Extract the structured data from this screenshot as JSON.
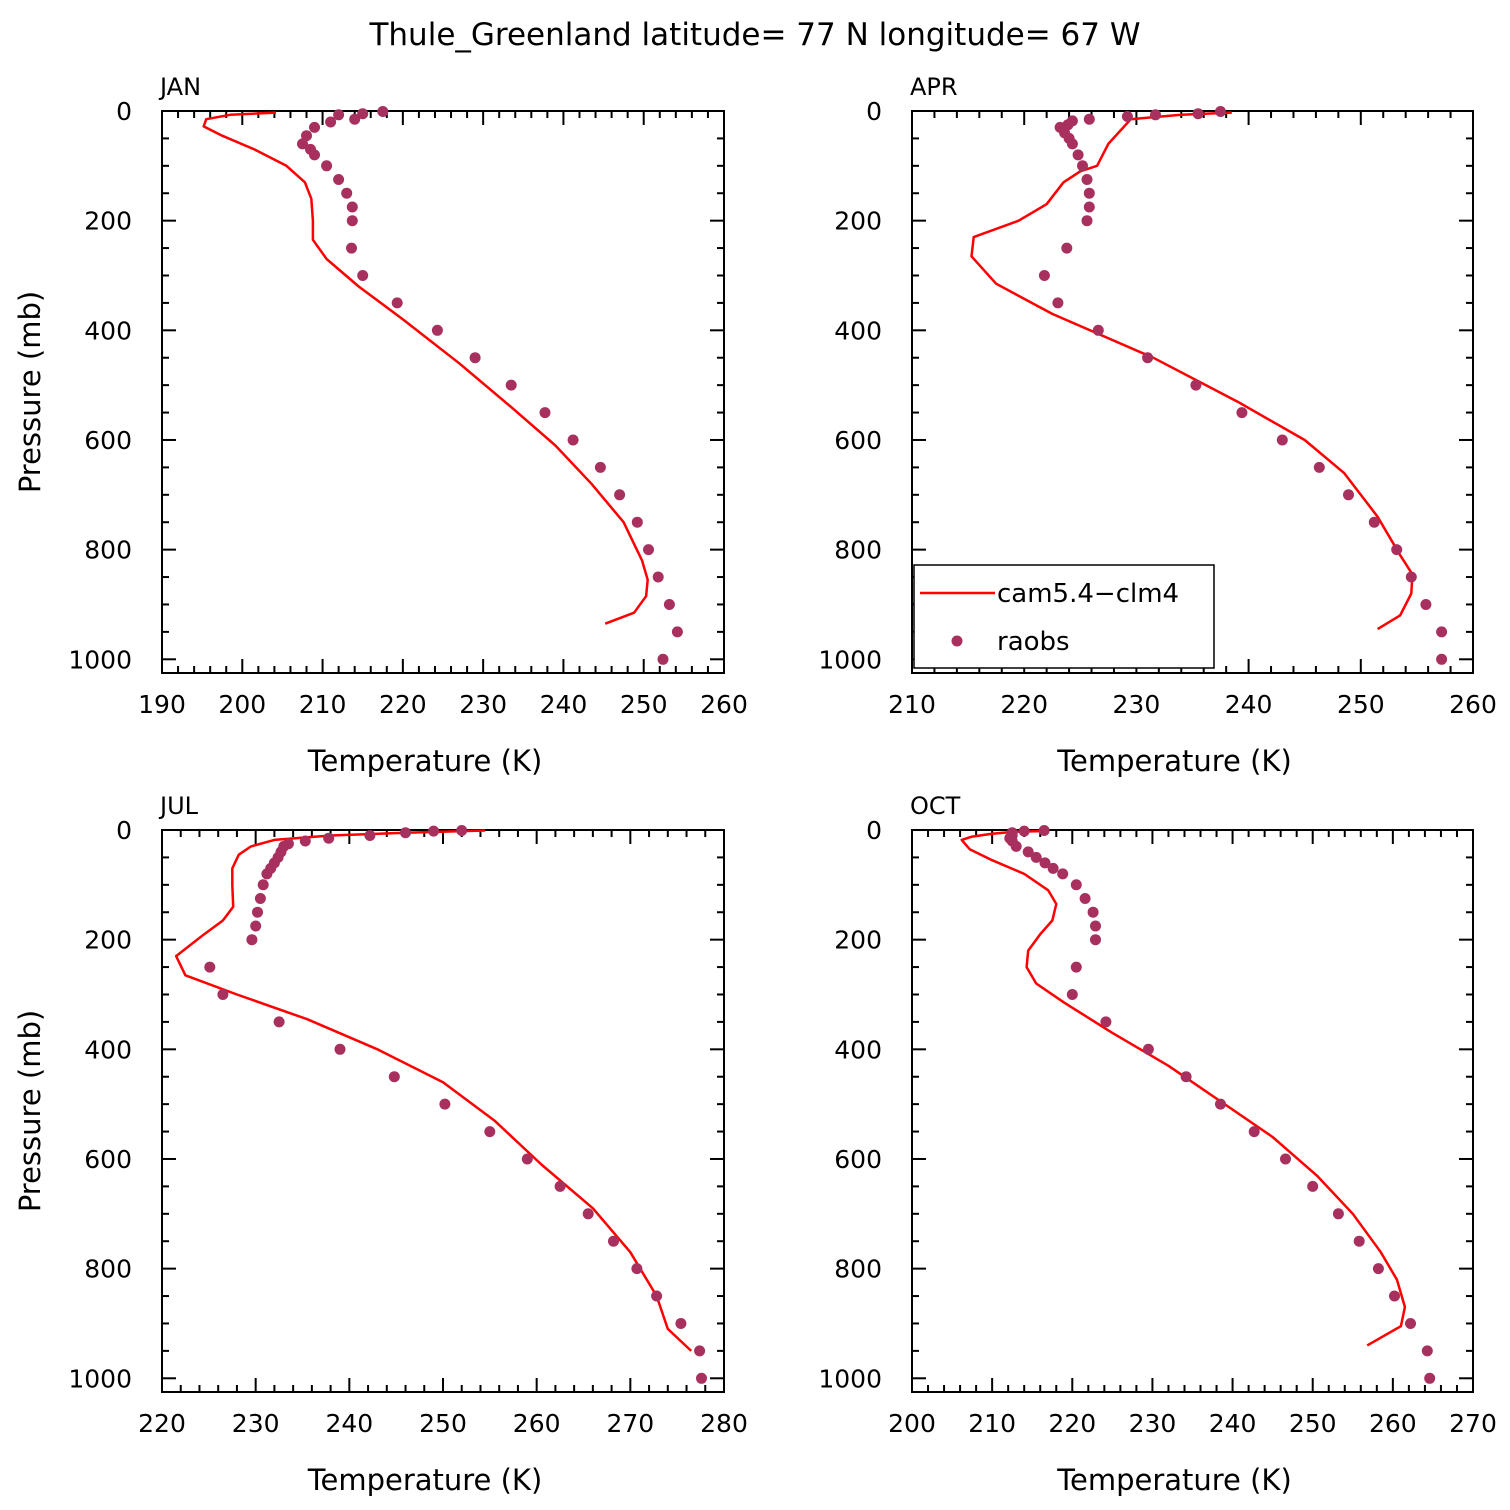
{
  "title": "Thule_Greenland  latitude= 77 N longitude= 67 W",
  "colors": {
    "model": "#ff0000",
    "obs": "#a8305f"
  },
  "legend": {
    "entries": [
      "cam5.4−clm4",
      "raobs"
    ],
    "location": "inside APR panel, lower-left"
  },
  "chart_data": [
    {
      "type": "line",
      "panel": "JAN",
      "xlabel": "Temperature (K)",
      "ylabel": "Pressure (mb)",
      "xlim": [
        190,
        260
      ],
      "ylim": [
        1025,
        0
      ],
      "xticks": [
        190,
        200,
        210,
        220,
        230,
        240,
        250,
        260
      ],
      "yticks": [
        0,
        200,
        400,
        600,
        800,
        1000
      ],
      "series": [
        {
          "name": "cam5.4−clm4",
          "style": "line",
          "points": [
            [
              204.2,
              3
            ],
            [
              198.5,
              7
            ],
            [
              195.5,
              15
            ],
            [
              195.2,
              28
            ],
            [
              197.5,
              45
            ],
            [
              201.5,
              70
            ],
            [
              205.5,
              100
            ],
            [
              207.8,
              130
            ],
            [
              208.6,
              160
            ],
            [
              208.8,
              200
            ],
            [
              208.8,
              235
            ],
            [
              210.5,
              270
            ],
            [
              214.5,
              320
            ],
            [
              220.0,
              380
            ],
            [
              227.0,
              460
            ],
            [
              233.5,
              540
            ],
            [
              239.0,
              610
            ],
            [
              243.5,
              680
            ],
            [
              247.5,
              750
            ],
            [
              249.8,
              820
            ],
            [
              250.5,
              855
            ],
            [
              250.3,
              885
            ],
            [
              248.8,
              915
            ],
            [
              245.2,
              935
            ]
          ]
        },
        {
          "name": "raobs",
          "style": "points",
          "points": [
            [
              217.5,
              1
            ],
            [
              215,
              5
            ],
            [
              212,
              7
            ],
            [
              214,
              15
            ],
            [
              211,
              20
            ],
            [
              209,
              30
            ],
            [
              208,
              45
            ],
            [
              207.5,
              60
            ],
            [
              208.5,
              70
            ],
            [
              209,
              80
            ],
            [
              210.5,
              100
            ],
            [
              212,
              125
            ],
            [
              213,
              150
            ],
            [
              213.7,
              175
            ],
            [
              213.7,
              200
            ],
            [
              213.6,
              250
            ],
            [
              215,
              300
            ],
            [
              219.3,
              350
            ],
            [
              224.3,
              400
            ],
            [
              229,
              450
            ],
            [
              233.5,
              500
            ],
            [
              237.7,
              550
            ],
            [
              241.2,
              600
            ],
            [
              244.6,
              650
            ],
            [
              247,
              700
            ],
            [
              249.2,
              750
            ],
            [
              250.6,
              800
            ],
            [
              251.8,
              850
            ],
            [
              253.2,
              900
            ],
            [
              254.2,
              950
            ],
            [
              252.4,
              1000
            ]
          ]
        }
      ]
    },
    {
      "type": "line",
      "panel": "APR",
      "xlabel": "Temperature (K)",
      "ylabel": "",
      "xlim": [
        210,
        260
      ],
      "ylim": [
        1025,
        0
      ],
      "xticks": [
        210,
        220,
        230,
        240,
        250,
        260
      ],
      "yticks": [
        0,
        200,
        400,
        600,
        800,
        1000
      ],
      "series": [
        {
          "name": "cam5.4−clm4",
          "style": "line",
          "points": [
            [
              238.5,
              3
            ],
            [
              234,
              7
            ],
            [
              229.5,
              15
            ],
            [
              227.5,
              60
            ],
            [
              226.5,
              100
            ],
            [
              225.0,
              110
            ],
            [
              223.5,
              130
            ],
            [
              222,
              170
            ],
            [
              219.5,
              200
            ],
            [
              215.5,
              230
            ],
            [
              215.3,
              265
            ],
            [
              217.5,
              315
            ],
            [
              222.5,
              370
            ],
            [
              231.5,
              450
            ],
            [
              239,
              530
            ],
            [
              245,
              600
            ],
            [
              248.5,
              660
            ],
            [
              251.5,
              740
            ],
            [
              253.5,
              810
            ],
            [
              254.6,
              845
            ],
            [
              254.5,
              880
            ],
            [
              253.5,
              920
            ],
            [
              251.5,
              945
            ]
          ]
        },
        {
          "name": "raobs",
          "style": "points",
          "points": [
            [
              237.5,
              1
            ],
            [
              235.5,
              5
            ],
            [
              231.7,
              7
            ],
            [
              229.2,
              10
            ],
            [
              225.8,
              15
            ],
            [
              224.3,
              18
            ],
            [
              223.9,
              25
            ],
            [
              223.2,
              30
            ],
            [
              223.6,
              40
            ],
            [
              224,
              50
            ],
            [
              224.3,
              60
            ],
            [
              224.8,
              80
            ],
            [
              225.2,
              100
            ],
            [
              225.6,
              125
            ],
            [
              225.8,
              150
            ],
            [
              225.8,
              175
            ],
            [
              225.6,
              200
            ],
            [
              223.8,
              250
            ],
            [
              221.8,
              300
            ],
            [
              223,
              350
            ],
            [
              226.6,
              400
            ],
            [
              231,
              450
            ],
            [
              235.3,
              500
            ],
            [
              239.4,
              550
            ],
            [
              243,
              600
            ],
            [
              246.3,
              650
            ],
            [
              248.9,
              700
            ],
            [
              251.2,
              750
            ],
            [
              253.2,
              800
            ],
            [
              254.5,
              850
            ],
            [
              255.8,
              900
            ],
            [
              257.2,
              950
            ],
            [
              257.2,
              1000
            ]
          ]
        }
      ]
    },
    {
      "type": "line",
      "panel": "JUL",
      "xlabel": "Temperature (K)",
      "ylabel": "Pressure (mb)",
      "xlim": [
        220,
        280
      ],
      "ylim": [
        1025,
        0
      ],
      "xticks": [
        220,
        230,
        240,
        250,
        260,
        270,
        280
      ],
      "yticks": [
        0,
        200,
        400,
        600,
        800,
        1000
      ],
      "series": [
        {
          "name": "cam5.4−clm4",
          "style": "line",
          "points": [
            [
              254.5,
              1
            ],
            [
              246,
              5
            ],
            [
              238,
              10
            ],
            [
              232,
              18
            ],
            [
              229.5,
              30
            ],
            [
              228.2,
              45
            ],
            [
              227.5,
              70
            ],
            [
              227.5,
              100
            ],
            [
              227.6,
              140
            ],
            [
              226.5,
              165
            ],
            [
              224.5,
              190
            ],
            [
              221.5,
              230
            ],
            [
              222.5,
              265
            ],
            [
              228,
              300
            ],
            [
              235.5,
              345
            ],
            [
              243,
              400
            ],
            [
              250,
              460
            ],
            [
              255.5,
              530
            ],
            [
              260.5,
              610
            ],
            [
              266,
              690
            ],
            [
              270,
              770
            ],
            [
              272.8,
              850
            ],
            [
              274,
              910
            ],
            [
              276.5,
              950
            ]
          ]
        },
        {
          "name": "raobs",
          "style": "points",
          "points": [
            [
              252,
              1
            ],
            [
              249,
              2
            ],
            [
              246,
              5
            ],
            [
              242.2,
              10
            ],
            [
              237.8,
              15
            ],
            [
              235.3,
              20
            ],
            [
              233.5,
              25
            ],
            [
              233,
              30
            ],
            [
              232.7,
              40
            ],
            [
              232.4,
              50
            ],
            [
              232,
              60
            ],
            [
              231.6,
              70
            ],
            [
              231.2,
              80
            ],
            [
              230.8,
              100
            ],
            [
              230.5,
              125
            ],
            [
              230.2,
              150
            ],
            [
              230,
              175
            ],
            [
              229.6,
              200
            ],
            [
              225.1,
              250
            ],
            [
              226.5,
              300
            ],
            [
              232.5,
              350
            ],
            [
              239,
              400
            ],
            [
              244.8,
              450
            ],
            [
              250.2,
              500
            ],
            [
              255,
              550
            ],
            [
              259,
              600
            ],
            [
              262.5,
              650
            ],
            [
              265.5,
              700
            ],
            [
              268.2,
              750
            ],
            [
              270.7,
              800
            ],
            [
              272.8,
              850
            ],
            [
              275.4,
              900
            ],
            [
              277.4,
              950
            ],
            [
              277.6,
              1000
            ]
          ]
        }
      ]
    },
    {
      "type": "line",
      "panel": "OCT",
      "xlabel": "Temperature (K)",
      "ylabel": "",
      "xlim": [
        200,
        270
      ],
      "ylim": [
        1025,
        0
      ],
      "xticks": [
        200,
        210,
        220,
        230,
        240,
        250,
        260,
        270
      ],
      "yticks": [
        0,
        200,
        400,
        600,
        800,
        1000
      ],
      "series": [
        {
          "name": "cam5.4−clm4",
          "style": "line",
          "points": [
            [
              216.5,
              2
            ],
            [
              213,
              3
            ],
            [
              210,
              7
            ],
            [
              207.5,
              12
            ],
            [
              206.2,
              18
            ],
            [
              207.2,
              35
            ],
            [
              210,
              55
            ],
            [
              214,
              80
            ],
            [
              217,
              110
            ],
            [
              218,
              135
            ],
            [
              217.5,
              165
            ],
            [
              216,
              190
            ],
            [
              214.5,
              220
            ],
            [
              214.3,
              250
            ],
            [
              215.5,
              280
            ],
            [
              219,
              315
            ],
            [
              225,
              370
            ],
            [
              232,
              430
            ],
            [
              239,
              500
            ],
            [
              245,
              560
            ],
            [
              250.5,
              630
            ],
            [
              255,
              700
            ],
            [
              258.5,
              770
            ],
            [
              260.5,
              820
            ],
            [
              261.5,
              870
            ],
            [
              261,
              905
            ],
            [
              256.8,
              940
            ]
          ]
        },
        {
          "name": "raobs",
          "style": "points",
          "points": [
            [
              216.5,
              1
            ],
            [
              214,
              2
            ],
            [
              212.5,
              5
            ],
            [
              212.5,
              10
            ],
            [
              212.2,
              15
            ],
            [
              212.5,
              20
            ],
            [
              213,
              30
            ],
            [
              214.5,
              40
            ],
            [
              215.5,
              50
            ],
            [
              216.6,
              60
            ],
            [
              217.6,
              70
            ],
            [
              218.8,
              80
            ],
            [
              220.5,
              100
            ],
            [
              221.6,
              125
            ],
            [
              222.6,
              150
            ],
            [
              222.9,
              175
            ],
            [
              222.9,
              200
            ],
            [
              220.5,
              250
            ],
            [
              220,
              300
            ],
            [
              224.2,
              350
            ],
            [
              229.5,
              400
            ],
            [
              234.2,
              450
            ],
            [
              238.5,
              500
            ],
            [
              242.7,
              550
            ],
            [
              246.6,
              600
            ],
            [
              250,
              650
            ],
            [
              253.2,
              700
            ],
            [
              255.8,
              750
            ],
            [
              258.2,
              800
            ],
            [
              260.2,
              850
            ],
            [
              262.2,
              900
            ],
            [
              264.3,
              950
            ],
            [
              264.6,
              1000
            ]
          ]
        }
      ]
    }
  ]
}
